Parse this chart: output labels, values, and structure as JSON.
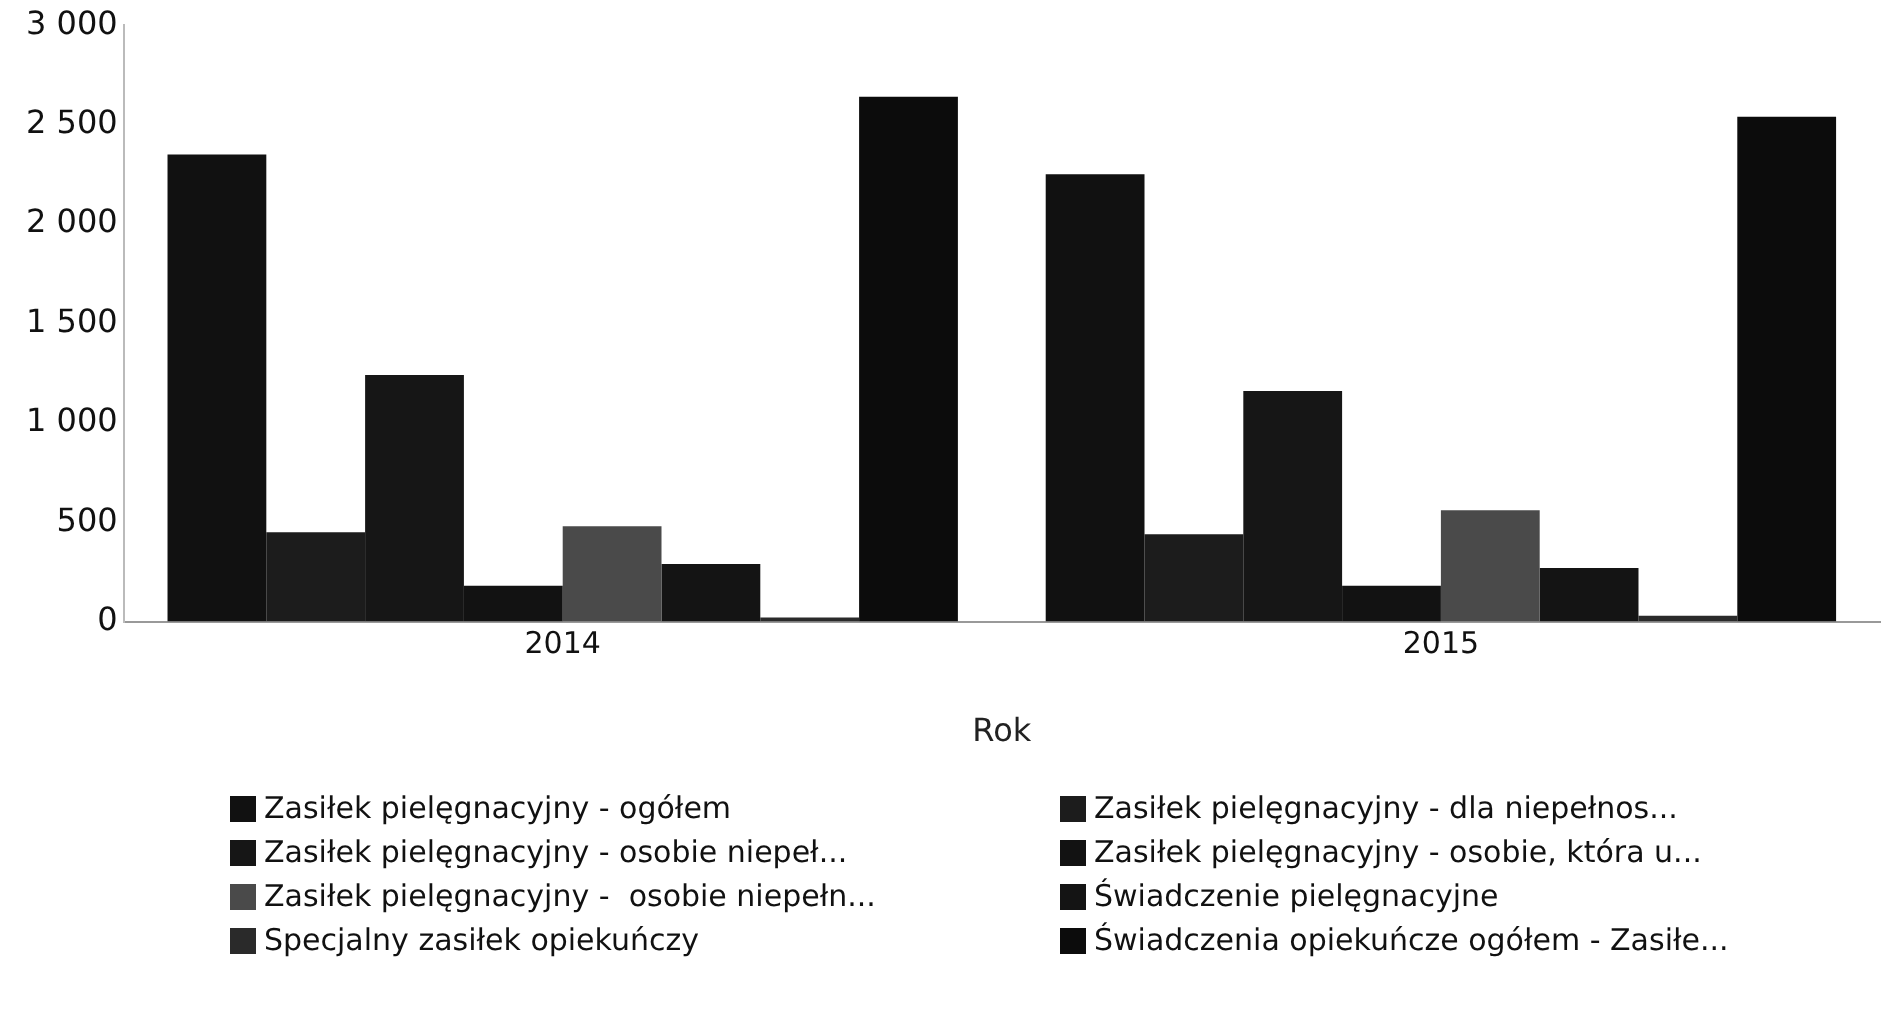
{
  "chart_data": {
    "type": "bar",
    "xlabel": "Rok",
    "categories": [
      "2014",
      "2015"
    ],
    "series": [
      {
        "name": "Zasiłek pielęgnacyjny - ogółem",
        "color": "#111111",
        "values": [
          2350,
          2250
        ]
      },
      {
        "name": "Zasiłek pielęgnacyjny - dla niepełnos...",
        "color": "#1c1c1c",
        "values": [
          450,
          440
        ]
      },
      {
        "name": "Zasiłek pielęgnacyjny - osobie niepeł...",
        "color": "#161616",
        "values": [
          1240,
          1160
        ]
      },
      {
        "name": "Zasiłek pielęgnacyjny - osobie, która u...",
        "color": "#121212",
        "values": [
          180,
          180
        ]
      },
      {
        "name": "Zasiłek pielęgnacyjny -  osobie niepełn...",
        "color": "#4a4a4a",
        "values": [
          480,
          560
        ]
      },
      {
        "name": "Świadczenie pielęgnacyjne",
        "color": "#141414",
        "values": [
          290,
          270
        ]
      },
      {
        "name": "Specjalny zasiłek opiekuńczy",
        "color": "#2a2a2a",
        "values": [
          20,
          30
        ]
      },
      {
        "name": "Świadczenia opiekuńcze ogółem - Zasiłe...",
        "color": "#0c0c0c",
        "values": [
          2640,
          2540
        ]
      }
    ],
    "ylim": [
      0,
      3000
    ],
    "yticks": [
      {
        "value": 0,
        "label": "0"
      },
      {
        "value": 500,
        "label": "500"
      },
      {
        "value": 1000,
        "label": "1 000"
      },
      {
        "value": 1500,
        "label": "1 500"
      },
      {
        "value": 2000,
        "label": "2 000"
      },
      {
        "value": 2500,
        "label": "2 500"
      },
      {
        "value": 3000,
        "label": "3 000"
      }
    ],
    "grid": false,
    "legend": "bottom"
  }
}
